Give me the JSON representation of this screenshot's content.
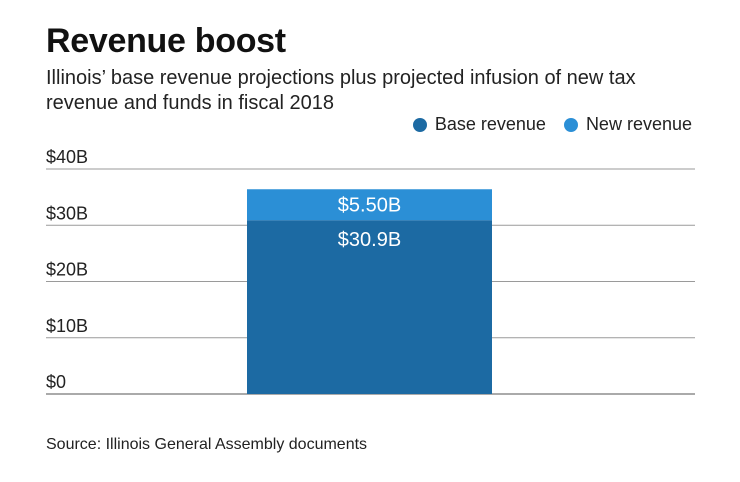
{
  "title": "Revenue boost",
  "subtitle": "Illinois’ base revenue projections plus projected infusion of new tax revenue and funds in fiscal 2018",
  "source": "Source: Illinois General Assembly documents",
  "chart_data": {
    "type": "bar",
    "stacked": true,
    "categories": [
      ""
    ],
    "series": [
      {
        "name": "Base revenue",
        "values": [
          30.9
        ],
        "label": "$30.9B",
        "color": "#1c6aa3"
      },
      {
        "name": "New revenue",
        "values": [
          5.5
        ],
        "label": "$5.50B",
        "color": "#2b8fd6"
      }
    ],
    "ylim": [
      0,
      40
    ],
    "yticks": [
      {
        "value": 0,
        "label": "$0"
      },
      {
        "value": 10,
        "label": "$10B"
      },
      {
        "value": 20,
        "label": "$20B"
      },
      {
        "value": 30,
        "label": "$30B"
      },
      {
        "value": 40,
        "label": "$40B"
      }
    ],
    "grid": true,
    "legend_position": "top-right"
  }
}
